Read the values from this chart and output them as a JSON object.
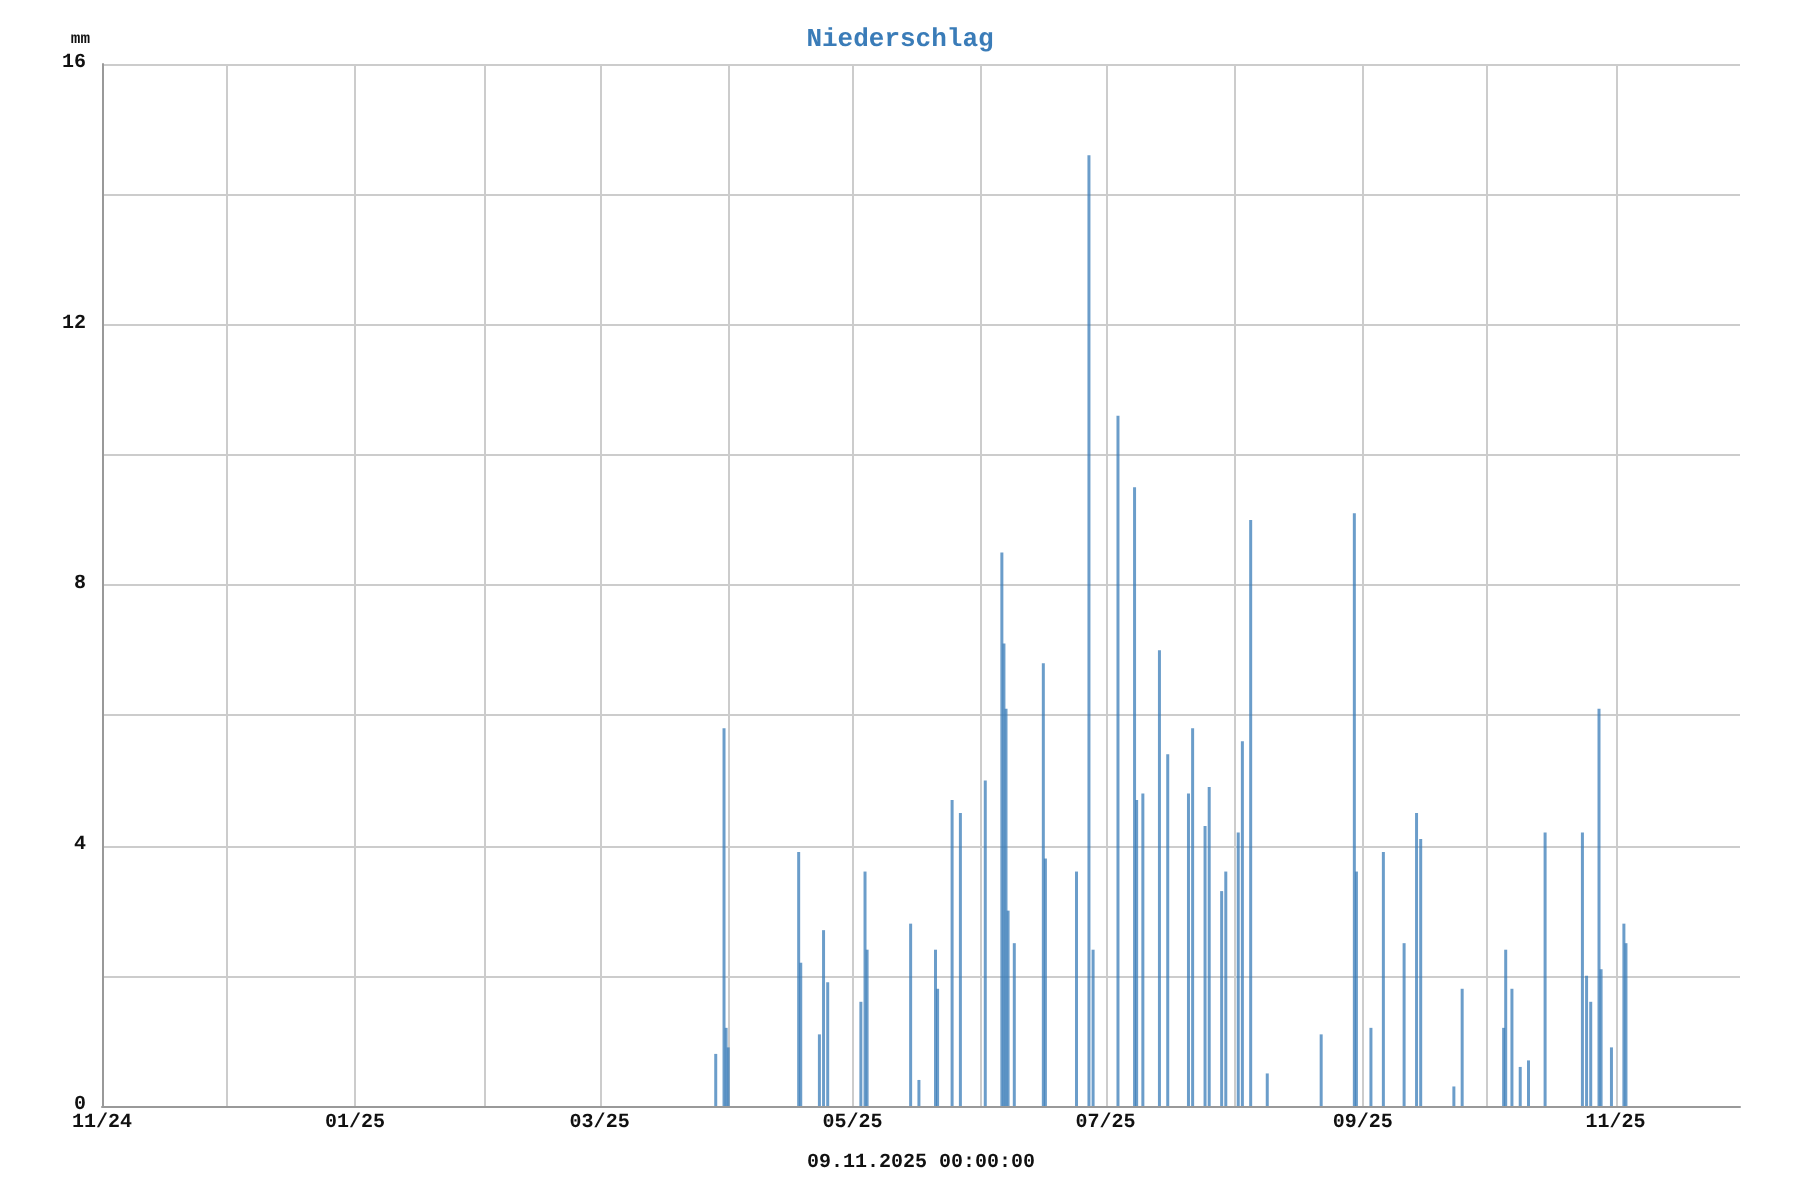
{
  "chart_data": {
    "type": "bar",
    "title": "Niederschlag",
    "ylabel": "mm",
    "xlabel": "09.11.2025 00:00:00",
    "x": [
      "2025-03-29",
      "2025-03-31",
      "2025-03-31T12:00",
      "2025-04-01",
      "2025-04-18",
      "2025-04-18T12:00",
      "2025-04-23",
      "2025-04-24",
      "2025-04-25",
      "2025-05-03",
      "2025-05-04",
      "2025-05-04T12:00",
      "2025-05-15",
      "2025-05-17",
      "2025-05-21",
      "2025-05-21T12:00",
      "2025-05-25",
      "2025-05-27",
      "2025-06-02",
      "2025-06-06",
      "2025-06-06T12:00",
      "2025-06-07",
      "2025-06-07T12:00",
      "2025-06-09",
      "2025-06-16",
      "2025-06-16T12:00",
      "2025-06-24",
      "2025-06-27",
      "2025-06-28",
      "2025-07-04",
      "2025-07-08",
      "2025-07-08T12:00",
      "2025-07-10",
      "2025-07-14",
      "2025-07-16",
      "2025-07-21",
      "2025-07-22",
      "2025-07-25",
      "2025-07-26",
      "2025-07-29",
      "2025-07-30",
      "2025-08-02",
      "2025-08-03",
      "2025-08-05",
      "2025-08-09",
      "2025-08-22",
      "2025-08-30",
      "2025-08-30T12:00",
      "2025-09-03",
      "2025-09-06",
      "2025-09-11",
      "2025-09-14",
      "2025-09-15",
      "2025-09-23",
      "2025-09-25",
      "2025-10-05",
      "2025-10-05T12:00",
      "2025-10-07",
      "2025-10-09",
      "2025-10-11",
      "2025-10-15",
      "2025-10-24",
      "2025-10-25",
      "2025-10-26",
      "2025-10-28",
      "2025-10-28T12:00",
      "2025-10-31",
      "2025-11-03",
      "2025-11-03T12:00"
    ],
    "values": [
      0.8,
      5.8,
      1.2,
      0.9,
      3.9,
      2.2,
      1.1,
      2.7,
      1.9,
      1.6,
      3.6,
      2.4,
      2.8,
      0.4,
      2.4,
      1.8,
      4.7,
      4.5,
      5.0,
      8.5,
      7.1,
      6.1,
      3.0,
      2.5,
      6.8,
      3.8,
      3.6,
      14.6,
      2.4,
      10.6,
      9.5,
      4.7,
      4.8,
      7.0,
      5.4,
      4.8,
      5.8,
      4.3,
      4.9,
      3.3,
      3.6,
      4.2,
      5.6,
      9.0,
      0.5,
      1.1,
      9.1,
      3.6,
      1.2,
      3.9,
      2.5,
      4.5,
      4.1,
      0.3,
      1.8,
      1.2,
      2.4,
      1.8,
      0.6,
      0.7,
      4.2,
      4.2,
      2.0,
      1.6,
      6.1,
      2.1,
      0.9,
      2.8,
      2.5
    ],
    "color": "#3a7cb8",
    "xlim": [
      "2024-11-01",
      "2025-12-01"
    ],
    "xticks": [
      {
        "value": "2024-11",
        "label": "11/24"
      },
      {
        "value": "2024-12",
        "label": null
      },
      {
        "value": "2025-01",
        "label": "01/25"
      },
      {
        "value": "2025-02",
        "label": null
      },
      {
        "value": "2025-03",
        "label": "03/25"
      },
      {
        "value": "2025-04",
        "label": null
      },
      {
        "value": "2025-05",
        "label": "05/25"
      },
      {
        "value": "2025-06",
        "label": null
      },
      {
        "value": "2025-07",
        "label": "07/25"
      },
      {
        "value": "2025-08",
        "label": null
      },
      {
        "value": "2025-09",
        "label": "09/25"
      },
      {
        "value": "2025-10",
        "label": null
      },
      {
        "value": "2025-11",
        "label": "11/25"
      }
    ],
    "ylim": [
      0,
      16
    ],
    "yticks": [
      0,
      {
        "value": 2,
        "label": null
      },
      4,
      {
        "value": 6,
        "label": null
      },
      8,
      {
        "value": 10,
        "label": null
      },
      12,
      {
        "value": 14,
        "label": null
      },
      16
    ],
    "grid": true
  }
}
